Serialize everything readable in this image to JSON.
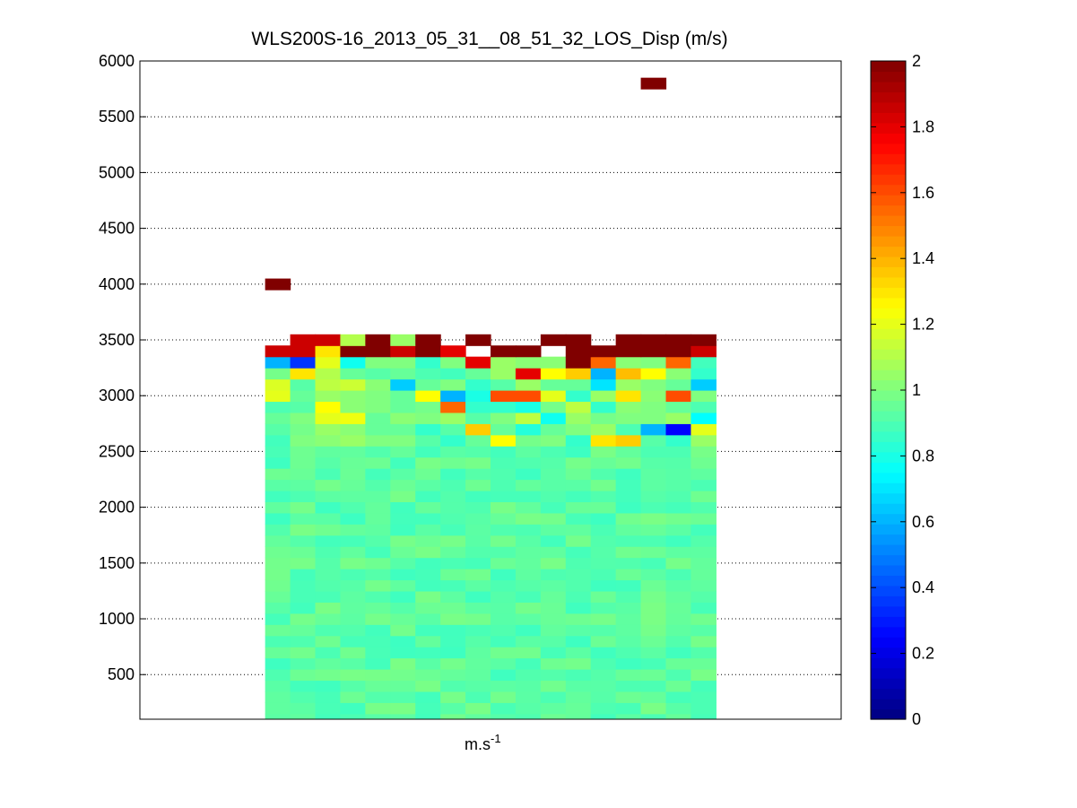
{
  "chart_data": {
    "type": "heatmap",
    "title": "WLS200S-16_2013_05_31__08_51_32_LOS_Disp (m/s)",
    "xlabel": "m.s",
    "xlabel_superscript": "-1",
    "ylabel": "",
    "ylim": [
      100,
      6000
    ],
    "yticks": [
      500,
      1000,
      1500,
      2000,
      2500,
      3000,
      3500,
      4000,
      4500,
      5000,
      5500,
      6000
    ],
    "grid": "y-dotted",
    "colormap": "jet",
    "clim": [
      0,
      2
    ],
    "colorbar": {
      "ticks": [
        0,
        0.2,
        0.4,
        0.6,
        0.8,
        1,
        1.2,
        1.4,
        1.6,
        1.8,
        2
      ],
      "tick_labels": [
        "0",
        "0.2",
        "0.4",
        "0.6",
        "0.8",
        "1",
        "1.2",
        "1.4",
        "1.6",
        "1.8",
        "2"
      ]
    },
    "n_columns": 18,
    "columns_range": [
      5,
      22
    ],
    "x_total_columns": 28,
    "row_height_m": 100,
    "base_ranges_m": {
      "from": 100,
      "to": 2500,
      "median_value": 0.93,
      "spread": 0.06
    },
    "rows": [
      {
        "range": 2600,
        "values": [
          0.88,
          1.0,
          1.02,
          1.05,
          1.0,
          1.0,
          0.92,
          0.85,
          0.95,
          1.25,
          0.98,
          1.0,
          0.85,
          1.3,
          1.35,
          0.92,
          0.85,
          1.05
        ]
      },
      {
        "range": 2700,
        "values": [
          0.92,
          0.98,
          1.05,
          1.02,
          0.95,
          0.95,
          0.85,
          0.92,
          1.35,
          0.95,
          0.82,
          0.95,
          1.0,
          1.05,
          0.9,
          0.6,
          0.25,
          1.2
        ]
      },
      {
        "range": 2800,
        "values": [
          0.95,
          1.0,
          1.2,
          1.22,
          0.95,
          1.02,
          1.0,
          1.05,
          0.92,
          1.0,
          1.12,
          0.78,
          1.05,
          0.98,
          1.0,
          1.0,
          1.05,
          0.75
        ]
      },
      {
        "range": 2900,
        "values": [
          0.9,
          0.92,
          1.25,
          1.02,
          1.0,
          0.95,
          0.98,
          1.55,
          0.85,
          0.85,
          0.8,
          0.98,
          1.12,
          0.85,
          1.02,
          1.0,
          0.95,
          0.9
        ]
      },
      {
        "range": 3000,
        "values": [
          1.2,
          0.95,
          1.05,
          1.02,
          1.0,
          0.95,
          1.25,
          0.6,
          0.8,
          1.6,
          1.6,
          1.2,
          0.85,
          1.05,
          1.3,
          1.02,
          1.6,
          1.0
        ]
      },
      {
        "range": 3100,
        "values": [
          1.18,
          0.92,
          1.12,
          1.15,
          1.02,
          0.65,
          0.95,
          1.0,
          0.85,
          0.92,
          1.05,
          0.95,
          0.95,
          0.7,
          1.05,
          1.0,
          0.95,
          0.65
        ]
      },
      {
        "range": 3200,
        "values": [
          0.98,
          1.3,
          1.1,
          0.95,
          0.92,
          0.95,
          0.9,
          0.88,
          0.95,
          1.05,
          1.8,
          1.25,
          1.35,
          0.6,
          1.38,
          1.25,
          1.02,
          0.85
        ]
      },
      {
        "range": 3300,
        "values": [
          0.6,
          0.35,
          1.2,
          0.78,
          1.0,
          1.0,
          0.85,
          1.0,
          1.8,
          1.05,
          1.02,
          1.02,
          2.0,
          1.55,
          1.02,
          1.0,
          1.55,
          0.88
        ]
      },
      {
        "range": 3400,
        "values": [
          1.85,
          1.85,
          1.3,
          2.0,
          2.0,
          1.85,
          2.0,
          1.8,
          null,
          2.0,
          2.0,
          null,
          2.0,
          2.0,
          2.0,
          2.0,
          2.0,
          1.85
        ]
      },
      {
        "range": 3500,
        "values": [
          null,
          1.85,
          1.85,
          1.1,
          2.0,
          1.05,
          2.0,
          null,
          2.0,
          null,
          null,
          2.0,
          2.0,
          null,
          2.0,
          2.0,
          2.0,
          2.0
        ]
      },
      {
        "range": 4000,
        "values": [
          2.0,
          null,
          null,
          null,
          null,
          null,
          null,
          null,
          null,
          null,
          null,
          null,
          null,
          null,
          null,
          null,
          null,
          null
        ]
      },
      {
        "range": 5800,
        "values": [
          null,
          null,
          null,
          null,
          null,
          null,
          null,
          null,
          null,
          null,
          null,
          null,
          null,
          null,
          null,
          2.0,
          null,
          null
        ]
      }
    ]
  }
}
